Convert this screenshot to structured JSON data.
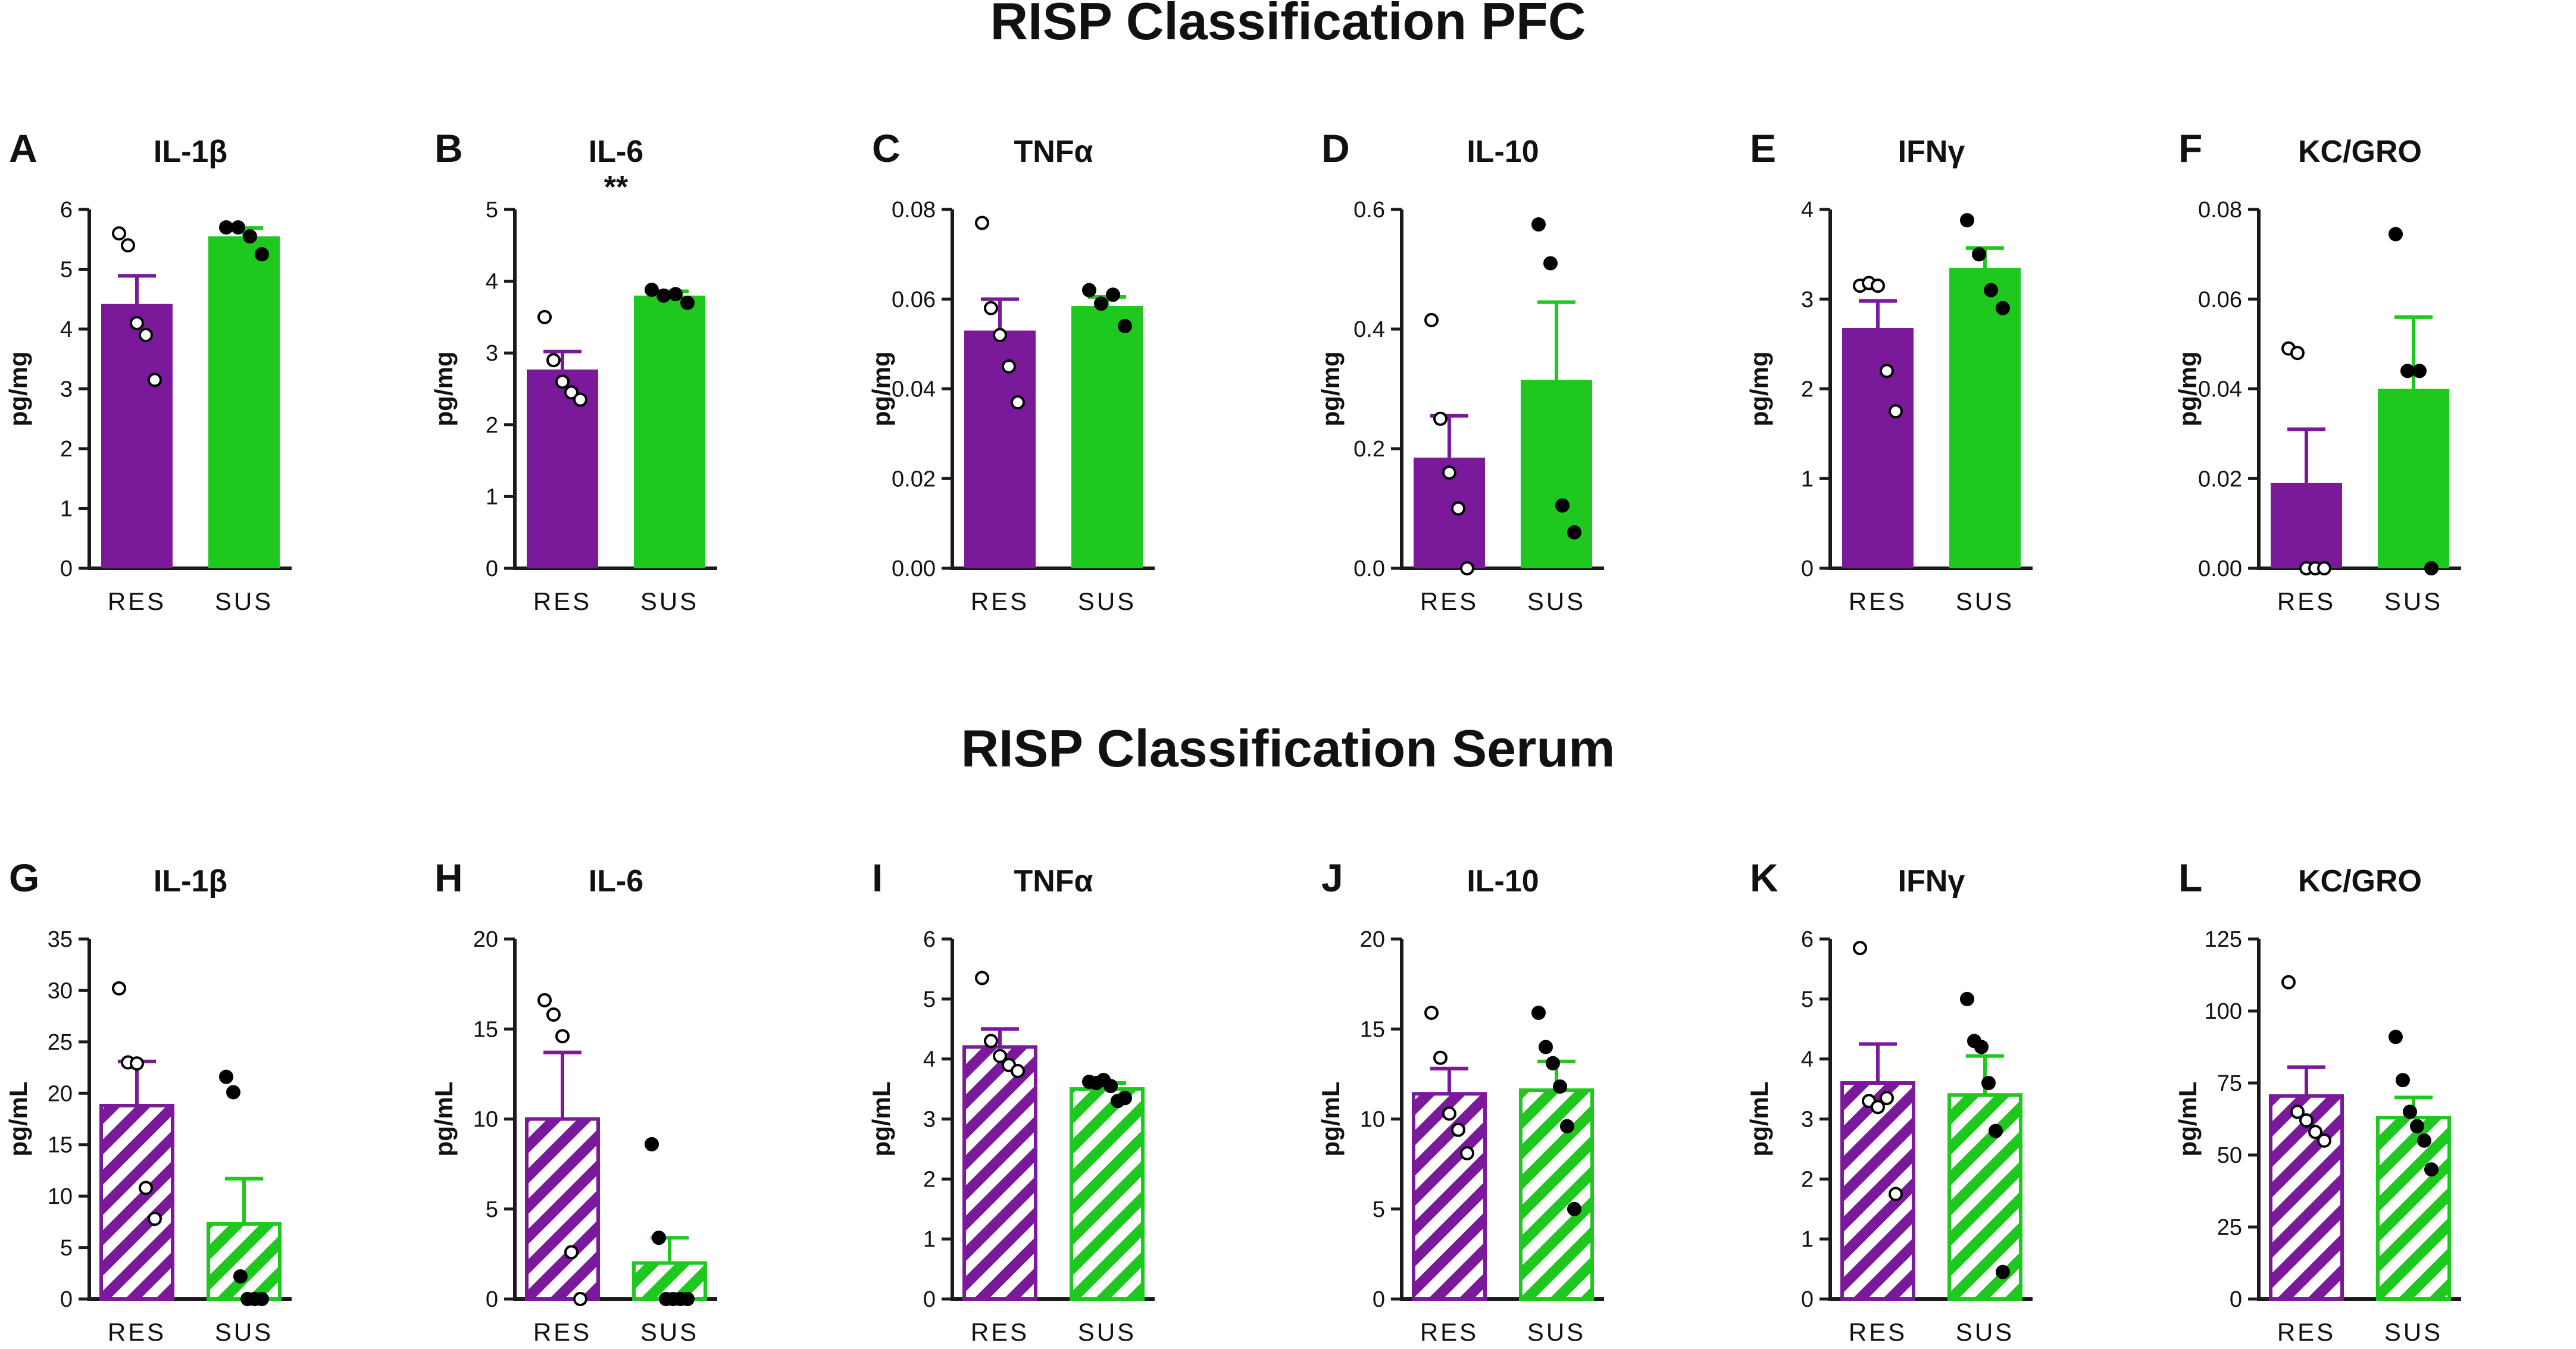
{
  "sections": [
    {
      "id": "pfc",
      "title": "RISP Classification PFC"
    },
    {
      "id": "serum",
      "title": "RISP Classification Serum"
    }
  ],
  "colors": {
    "res": "#7a1a9a",
    "sus": "#1ec81e",
    "axis": "#1a1a1a",
    "dot": "#000000"
  },
  "chart_data": [
    {
      "panel": "A",
      "section": "pfc",
      "type": "bar",
      "title": "IL-1β",
      "annotation": "",
      "ylabel": "pg/mg",
      "ylim": [
        0,
        6
      ],
      "yticks": [
        "0",
        "1",
        "2",
        "3",
        "4",
        "5",
        "6"
      ],
      "categories": [
        "RES",
        "SUS"
      ],
      "means": [
        4.42,
        5.55
      ],
      "sem": [
        0.47,
        0.14
      ],
      "points": [
        [
          5.6,
          5.4,
          4.1,
          3.9,
          3.15
        ],
        [
          5.7,
          5.7,
          5.55,
          5.25
        ]
      ],
      "pattern": "solid"
    },
    {
      "panel": "B",
      "section": "pfc",
      "type": "bar",
      "title": "IL-6",
      "annotation": "**",
      "ylabel": "pg/mg",
      "ylim": [
        0,
        5
      ],
      "yticks": [
        "0",
        "1",
        "2",
        "3",
        "4",
        "5"
      ],
      "categories": [
        "RES",
        "SUS"
      ],
      "means": [
        2.77,
        3.8
      ],
      "sem": [
        0.25,
        0.06
      ],
      "points": [
        [
          3.5,
          2.9,
          2.6,
          2.45,
          2.35
        ],
        [
          3.88,
          3.8,
          3.82,
          3.7
        ]
      ],
      "pattern": "solid"
    },
    {
      "panel": "C",
      "section": "pfc",
      "type": "bar",
      "title": "TNFα",
      "annotation": "",
      "ylabel": "pg/mg",
      "ylim": [
        0,
        0.08
      ],
      "yticks": [
        "0.00",
        "0.02",
        "0.04",
        "0.06",
        "0.08"
      ],
      "categories": [
        "RES",
        "SUS"
      ],
      "means": [
        0.053,
        0.0585
      ],
      "sem": [
        0.007,
        0.002
      ],
      "points": [
        [
          0.077,
          0.058,
          0.052,
          0.045,
          0.037
        ],
        [
          0.062,
          0.059,
          0.061,
          0.054
        ]
      ],
      "pattern": "solid"
    },
    {
      "panel": "D",
      "section": "pfc",
      "type": "bar",
      "title": "IL-10",
      "annotation": "",
      "ylabel": "pg/mg",
      "ylim": [
        0,
        0.6
      ],
      "yticks": [
        "0.0",
        "0.2",
        "0.4",
        "0.6"
      ],
      "categories": [
        "RES",
        "SUS"
      ],
      "means": [
        0.185,
        0.315
      ],
      "sem": [
        0.07,
        0.13
      ],
      "points": [
        [
          0.415,
          0.25,
          0.16,
          0.1,
          0.0
        ],
        [
          0.575,
          0.51,
          0.105,
          0.06
        ]
      ],
      "pattern": "solid"
    },
    {
      "panel": "E",
      "section": "pfc",
      "type": "bar",
      "title": "IFNγ",
      "annotation": "",
      "ylabel": "pg/mg",
      "ylim": [
        0,
        4
      ],
      "yticks": [
        "0",
        "1",
        "2",
        "3",
        "4"
      ],
      "categories": [
        "RES",
        "SUS"
      ],
      "means": [
        2.68,
        3.35
      ],
      "sem": [
        0.3,
        0.22
      ],
      "points": [
        [
          3.15,
          3.18,
          3.15,
          2.2,
          1.75
        ],
        [
          3.88,
          3.5,
          3.1,
          2.9
        ]
      ],
      "pattern": "solid"
    },
    {
      "panel": "F",
      "section": "pfc",
      "type": "bar",
      "title": "KC/GRO",
      "annotation": "",
      "ylabel": "pg/mg",
      "ylim": [
        0,
        0.08
      ],
      "yticks": [
        "0.00",
        "0.02",
        "0.04",
        "0.06",
        "0.08"
      ],
      "categories": [
        "RES",
        "SUS"
      ],
      "means": [
        0.019,
        0.04
      ],
      "sem": [
        0.012,
        0.016
      ],
      "points": [
        [
          0.049,
          0.048,
          0.0,
          0.0,
          0.0
        ],
        [
          0.0745,
          0.044,
          0.044,
          0.0
        ]
      ],
      "pattern": "solid"
    },
    {
      "panel": "G",
      "section": "serum",
      "type": "bar",
      "title": "IL-1β",
      "annotation": "",
      "ylabel": "pg/mL",
      "ylim": [
        0,
        35
      ],
      "yticks": [
        "0",
        "5",
        "10",
        "15",
        "20",
        "25",
        "30",
        "35"
      ],
      "categories": [
        "RES",
        "SUS"
      ],
      "means": [
        18.8,
        7.3
      ],
      "sem": [
        4.3,
        4.4
      ],
      "points": [
        [
          30.2,
          23.0,
          22.9,
          10.8,
          7.8
        ],
        [
          21.6,
          20.1,
          2.2,
          0.0,
          0.0,
          0.0
        ]
      ],
      "pattern": "hatched"
    },
    {
      "panel": "H",
      "section": "serum",
      "type": "bar",
      "title": "IL-6",
      "annotation": "",
      "ylabel": "pg/mL",
      "ylim": [
        0,
        20
      ],
      "yticks": [
        "0",
        "5",
        "10",
        "15",
        "20"
      ],
      "categories": [
        "RES",
        "SUS"
      ],
      "means": [
        10.0,
        2.0
      ],
      "sem": [
        3.7,
        1.4
      ],
      "points": [
        [
          16.6,
          15.8,
          14.6,
          2.6,
          0.0
        ],
        [
          8.6,
          3.4,
          0.0,
          0.0,
          0.0,
          0.0
        ]
      ],
      "pattern": "hatched"
    },
    {
      "panel": "I",
      "section": "serum",
      "type": "bar",
      "title": "TNFα",
      "annotation": "",
      "ylabel": "pg/mL",
      "ylim": [
        0,
        6
      ],
      "yticks": [
        "0",
        "1",
        "2",
        "3",
        "4",
        "5",
        "6"
      ],
      "categories": [
        "RES",
        "SUS"
      ],
      "means": [
        4.2,
        3.5
      ],
      "sem": [
        0.3,
        0.1
      ],
      "points": [
        [
          5.35,
          4.3,
          4.05,
          3.9,
          3.8
        ],
        [
          3.62,
          3.6,
          3.65,
          3.55,
          3.3,
          3.35
        ]
      ],
      "pattern": "hatched"
    },
    {
      "panel": "J",
      "section": "serum",
      "type": "bar",
      "title": "IL-10",
      "annotation": "",
      "ylabel": "pg/mL",
      "ylim": [
        0,
        20
      ],
      "yticks": [
        "0",
        "5",
        "10",
        "15",
        "20"
      ],
      "categories": [
        "RES",
        "SUS"
      ],
      "means": [
        11.4,
        11.6
      ],
      "sem": [
        1.4,
        1.6
      ],
      "points": [
        [
          15.9,
          13.4,
          10.3,
          9.4,
          8.1
        ],
        [
          15.9,
          14.0,
          13.1,
          11.8,
          9.6,
          5.0
        ]
      ],
      "pattern": "hatched"
    },
    {
      "panel": "K",
      "section": "serum",
      "type": "bar",
      "title": "IFNγ",
      "annotation": "",
      "ylabel": "pg/mL",
      "ylim": [
        0,
        6
      ],
      "yticks": [
        "0",
        "1",
        "2",
        "3",
        "4",
        "5",
        "6"
      ],
      "categories": [
        "RES",
        "SUS"
      ],
      "means": [
        3.6,
        3.4
      ],
      "sem": [
        0.65,
        0.65
      ],
      "points": [
        [
          5.85,
          3.3,
          3.2,
          3.35,
          1.75
        ],
        [
          5.0,
          4.3,
          4.2,
          3.6,
          2.8,
          0.45
        ]
      ],
      "pattern": "hatched"
    },
    {
      "panel": "L",
      "section": "serum",
      "type": "bar",
      "title": "KC/GRO",
      "annotation": "",
      "ylabel": "pg/mL",
      "ylim": [
        0,
        125
      ],
      "yticks": [
        "0",
        "25",
        "50",
        "75",
        "100",
        "125"
      ],
      "categories": [
        "RES",
        "SUS"
      ],
      "means": [
        70.5,
        63.0
      ],
      "sem": [
        10.0,
        7.0
      ],
      "points": [
        [
          110.0,
          65.0,
          62.0,
          58.0,
          55.0
        ],
        [
          91.0,
          76.0,
          65.0,
          60.0,
          55.0,
          45.0
        ]
      ],
      "pattern": "hatched"
    }
  ]
}
